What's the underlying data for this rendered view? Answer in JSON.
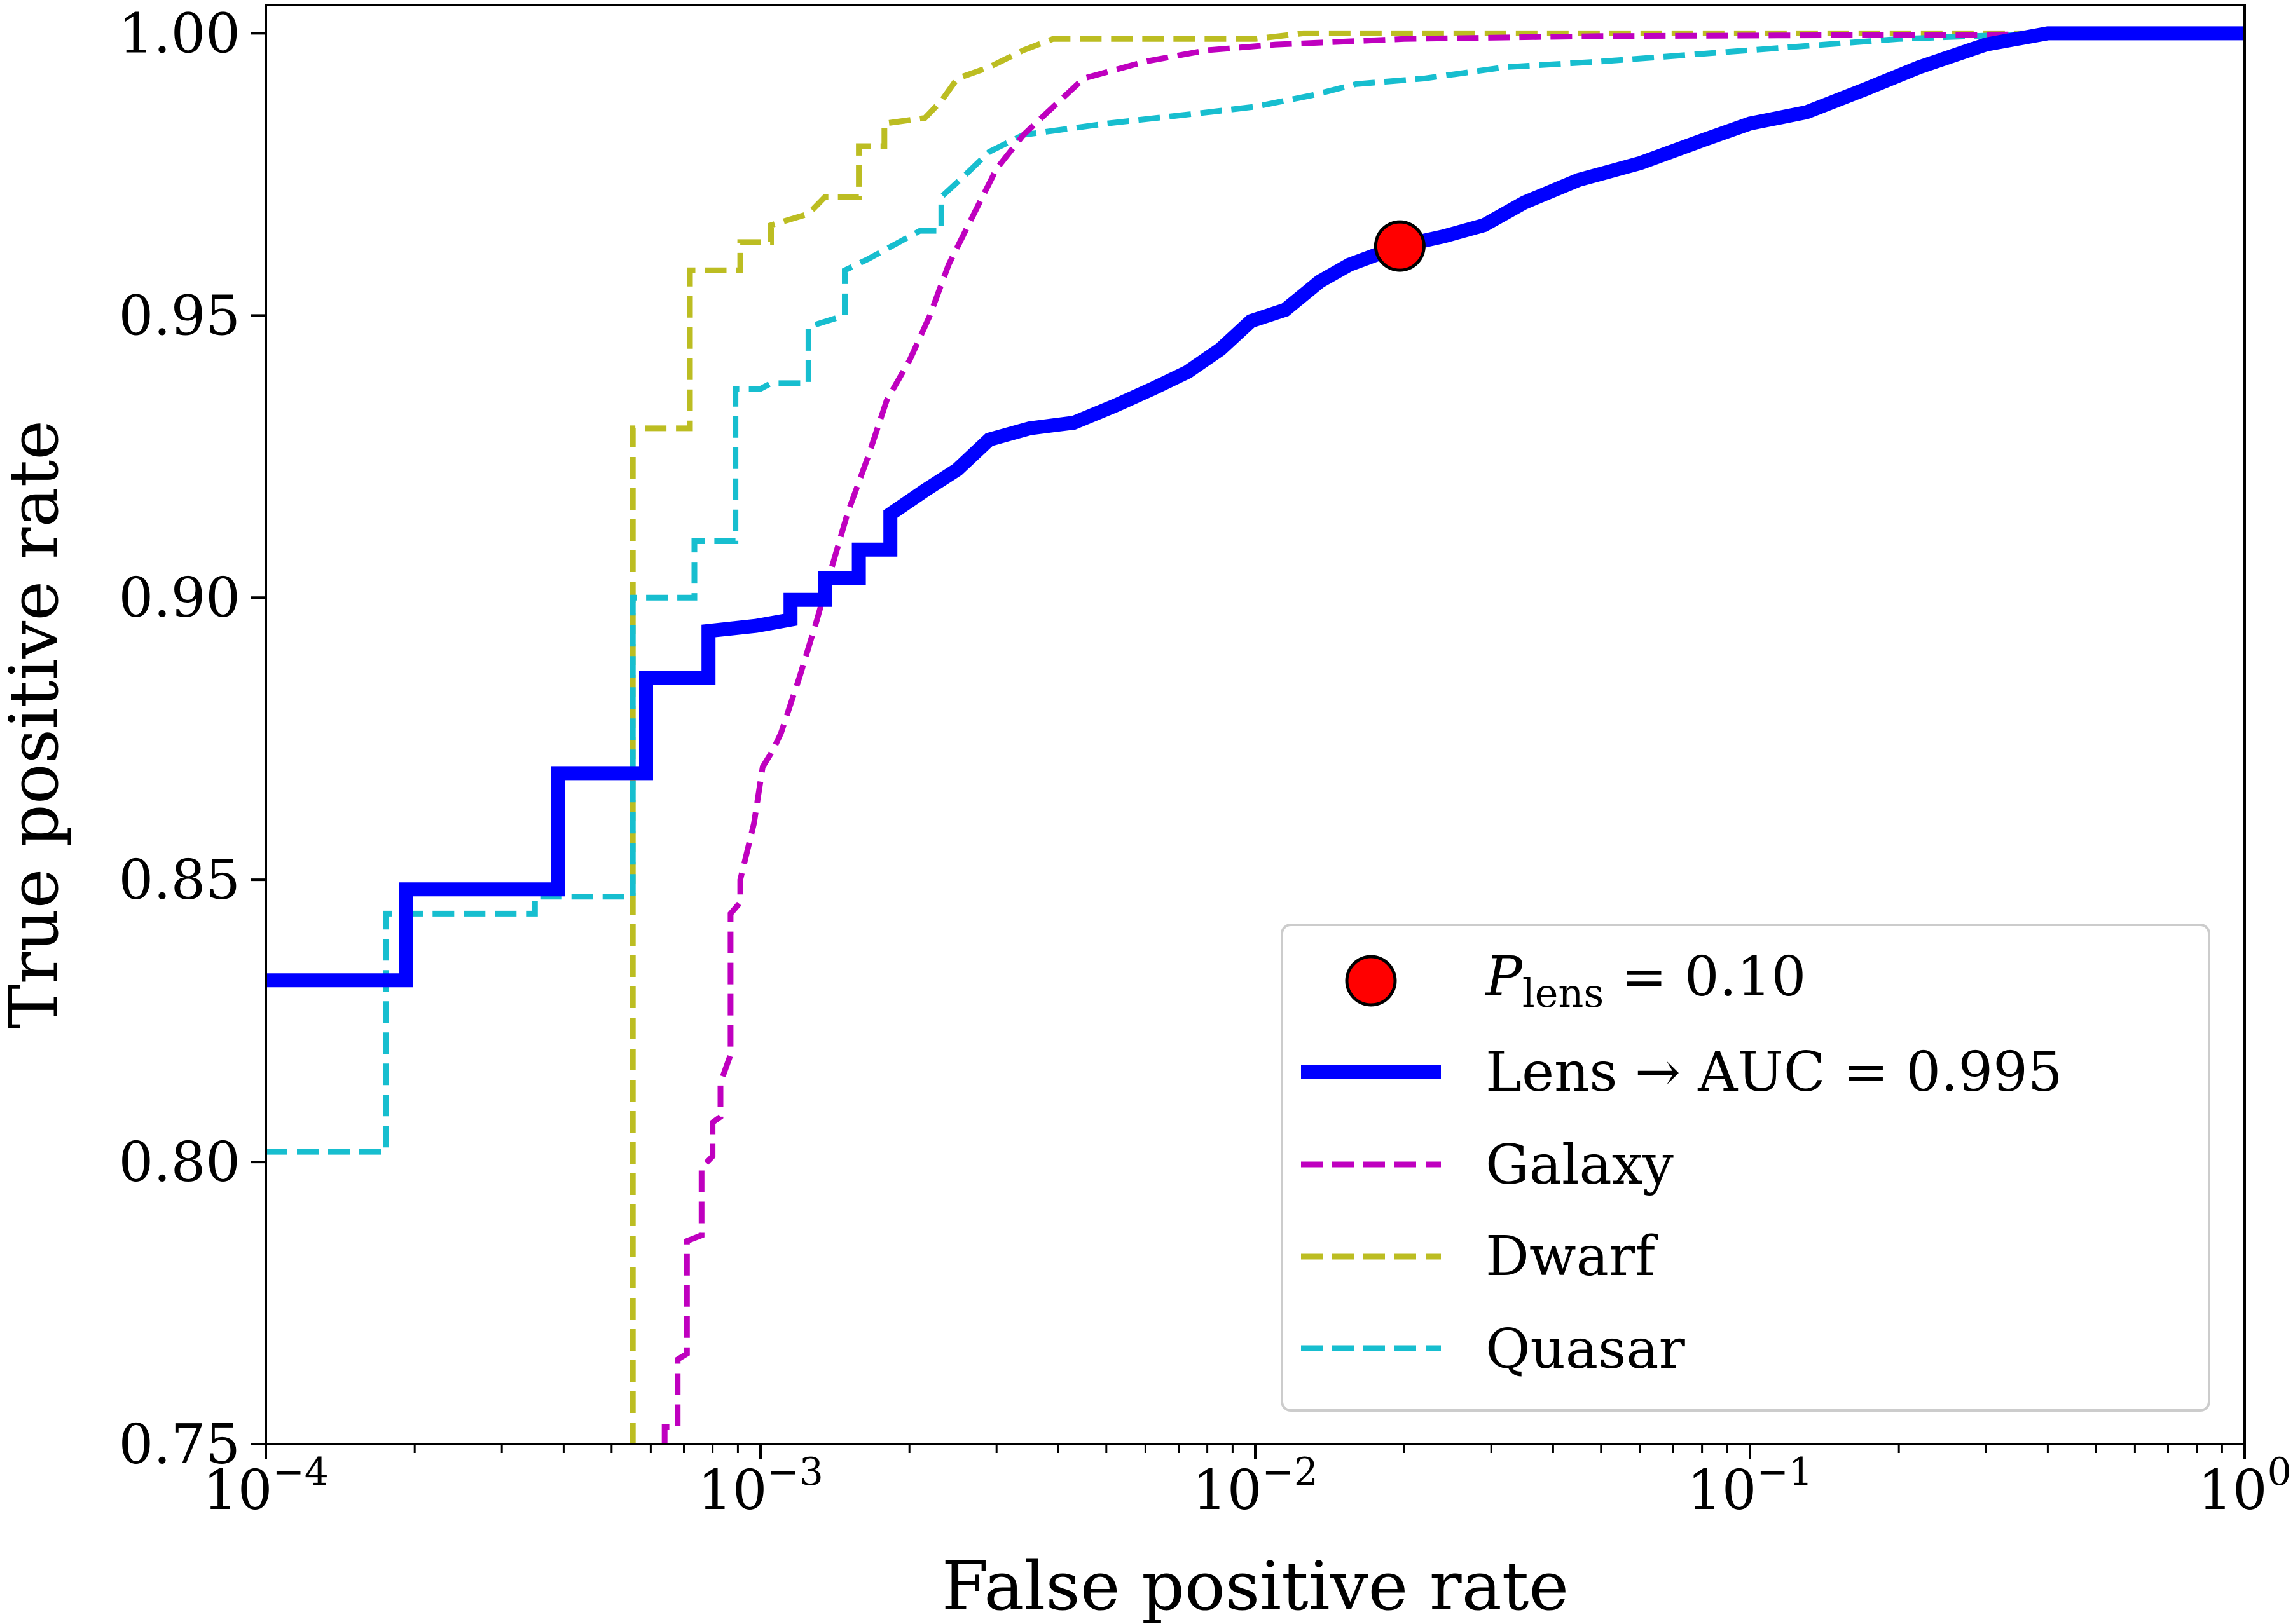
{
  "chart_data": {
    "type": "line",
    "xlabel": "False positive rate",
    "ylabel": "True positive rate",
    "xscale": "log",
    "xlim": [
      0.0001,
      1
    ],
    "ylim": [
      0.75,
      1.005
    ],
    "x_ticks": [
      {
        "base": "10",
        "exp": "−4",
        "value": 0.0001
      },
      {
        "base": "10",
        "exp": "−3",
        "value": 0.001
      },
      {
        "base": "10",
        "exp": "−2",
        "value": 0.01
      },
      {
        "base": "10",
        "exp": "−1",
        "value": 0.1
      },
      {
        "base": "10",
        "exp": "0",
        "value": 1
      }
    ],
    "y_ticks": [
      "0.75",
      "0.80",
      "0.85",
      "0.90",
      "0.95",
      "1.00"
    ],
    "grid": false,
    "legend_position": "lower right",
    "legend": {
      "marker_label_main": "P",
      "marker_label_sub": "lens",
      "marker_label_rest": " = 0.10",
      "lens_label": "Lens → AUC = 0.995",
      "galaxy_label": "Galaxy",
      "dwarf_label": "Dwarf",
      "quasar_label": "Quasar"
    },
    "colors": {
      "lens": "#0000ff",
      "galaxy": "#bf00bf",
      "dwarf": "#bcbd22",
      "quasar": "#17becf",
      "marker": "#ff0000"
    },
    "marker_point": {
      "x": 0.0196,
      "y": 0.9623
    },
    "series": [
      {
        "name": "Lens → AUC = 0.995",
        "style": "solid",
        "points": [
          [
            0.0001,
            0.8322
          ],
          [
            0.000192,
            0.8322
          ],
          [
            0.000192,
            0.8483
          ],
          [
            0.00039,
            0.8483
          ],
          [
            0.00039,
            0.8689
          ],
          [
            0.000587,
            0.8689
          ],
          [
            0.000587,
            0.8858
          ],
          [
            0.000785,
            0.8858
          ],
          [
            0.000785,
            0.8941
          ],
          [
            0.00098,
            0.895
          ],
          [
            0.00115,
            0.8961
          ],
          [
            0.00115,
            0.8996
          ],
          [
            0.00135,
            0.8996
          ],
          [
            0.00135,
            0.9034
          ],
          [
            0.00158,
            0.9034
          ],
          [
            0.00158,
            0.9085
          ],
          [
            0.00183,
            0.9085
          ],
          [
            0.00183,
            0.9148
          ],
          [
            0.00215,
            0.919
          ],
          [
            0.0025,
            0.9227
          ],
          [
            0.0029,
            0.928
          ],
          [
            0.0035,
            0.93
          ],
          [
            0.0043,
            0.931
          ],
          [
            0.0052,
            0.934
          ],
          [
            0.0062,
            0.937
          ],
          [
            0.0073,
            0.94
          ],
          [
            0.0085,
            0.944
          ],
          [
            0.0098,
            0.949
          ],
          [
            0.0115,
            0.951
          ],
          [
            0.0135,
            0.956
          ],
          [
            0.0155,
            0.959
          ],
          [
            0.0196,
            0.9623
          ],
          [
            0.024,
            0.964
          ],
          [
            0.029,
            0.966
          ],
          [
            0.035,
            0.97
          ],
          [
            0.045,
            0.974
          ],
          [
            0.06,
            0.977
          ],
          [
            0.08,
            0.981
          ],
          [
            0.1,
            0.984
          ],
          [
            0.13,
            0.986
          ],
          [
            0.17,
            0.99
          ],
          [
            0.22,
            0.994
          ],
          [
            0.3,
            0.998
          ],
          [
            0.4,
            1.0
          ],
          [
            1.0,
            1.0
          ]
        ]
      },
      {
        "name": "Galaxy",
        "style": "dashed",
        "points": [
          [
            0.00064,
            0.75
          ],
          [
            0.00064,
            0.753
          ],
          [
            0.00068,
            0.753
          ],
          [
            0.00068,
            0.765
          ],
          [
            0.00071,
            0.766
          ],
          [
            0.00071,
            0.786
          ],
          [
            0.00076,
            0.787
          ],
          [
            0.00076,
            0.799
          ],
          [
            0.0008,
            0.801
          ],
          [
            0.0008,
            0.807
          ],
          [
            0.00083,
            0.808
          ],
          [
            0.00083,
            0.814
          ],
          [
            0.00087,
            0.819
          ],
          [
            0.00087,
            0.844
          ],
          [
            0.00091,
            0.846
          ],
          [
            0.00091,
            0.85
          ],
          [
            0.00097,
            0.86
          ],
          [
            0.00101,
            0.87
          ],
          [
            0.00106,
            0.873
          ],
          [
            0.0011,
            0.876
          ],
          [
            0.0012,
            0.886
          ],
          [
            0.0013,
            0.896
          ],
          [
            0.0014,
            0.906
          ],
          [
            0.0015,
            0.915
          ],
          [
            0.00165,
            0.925
          ],
          [
            0.0018,
            0.935
          ],
          [
            0.002,
            0.942
          ],
          [
            0.0022,
            0.95
          ],
          [
            0.0024,
            0.959
          ],
          [
            0.0027,
            0.968
          ],
          [
            0.003,
            0.976
          ],
          [
            0.0034,
            0.982
          ],
          [
            0.0038,
            0.986
          ],
          [
            0.0045,
            0.992
          ],
          [
            0.006,
            0.995
          ],
          [
            0.008,
            0.997
          ],
          [
            0.011,
            0.998
          ],
          [
            0.02,
            0.999
          ],
          [
            0.05,
            0.9995
          ],
          [
            0.2,
            0.9997
          ],
          [
            1.0,
            1.0
          ]
        ]
      },
      {
        "name": "Dwarf",
        "style": "dashed",
        "points": [
          [
            0.000552,
            0.75
          ],
          [
            0.000552,
            0.93
          ],
          [
            0.00072,
            0.93
          ],
          [
            0.00072,
            0.958
          ],
          [
            0.00091,
            0.958
          ],
          [
            0.00091,
            0.963
          ],
          [
            0.00105,
            0.963
          ],
          [
            0.00105,
            0.966
          ],
          [
            0.00125,
            0.968
          ],
          [
            0.00135,
            0.971
          ],
          [
            0.00158,
            0.971
          ],
          [
            0.00158,
            0.98
          ],
          [
            0.00178,
            0.98
          ],
          [
            0.00178,
            0.984
          ],
          [
            0.00215,
            0.985
          ],
          [
            0.00232,
            0.988
          ],
          [
            0.0025,
            0.992
          ],
          [
            0.0029,
            0.994
          ],
          [
            0.0034,
            0.997
          ],
          [
            0.0039,
            0.999
          ],
          [
            0.01,
            0.999
          ],
          [
            0.0125,
            1.0
          ],
          [
            1.0,
            1.0
          ]
        ]
      },
      {
        "name": "Quasar",
        "style": "dashed",
        "points": [
          [
            0.0001,
            0.8018
          ],
          [
            0.000175,
            0.8018
          ],
          [
            0.000175,
            0.844
          ],
          [
            0.00035,
            0.844
          ],
          [
            0.00035,
            0.847
          ],
          [
            0.000552,
            0.847
          ],
          [
            0.000552,
            0.9
          ],
          [
            0.000735,
            0.9
          ],
          [
            0.000735,
            0.91
          ],
          [
            0.00089,
            0.91
          ],
          [
            0.00089,
            0.937
          ],
          [
            0.001,
            0.937
          ],
          [
            0.00105,
            0.938
          ],
          [
            0.00125,
            0.938
          ],
          [
            0.00125,
            0.948
          ],
          [
            0.00148,
            0.95
          ],
          [
            0.00148,
            0.958
          ],
          [
            0.00165,
            0.96
          ],
          [
            0.0021,
            0.965
          ],
          [
            0.00232,
            0.965
          ],
          [
            0.00232,
            0.971
          ],
          [
            0.0026,
            0.975
          ],
          [
            0.0029,
            0.979
          ],
          [
            0.0034,
            0.982
          ],
          [
            0.005,
            0.984
          ],
          [
            0.008,
            0.986
          ],
          [
            0.01,
            0.987
          ],
          [
            0.013,
            0.989
          ],
          [
            0.016,
            0.991
          ],
          [
            0.022,
            0.992
          ],
          [
            0.032,
            0.994
          ],
          [
            0.05,
            0.995
          ],
          [
            0.1,
            0.997
          ],
          [
            0.2,
            0.999
          ],
          [
            0.4,
            1.0
          ],
          [
            1.0,
            1.0
          ]
        ]
      }
    ]
  }
}
